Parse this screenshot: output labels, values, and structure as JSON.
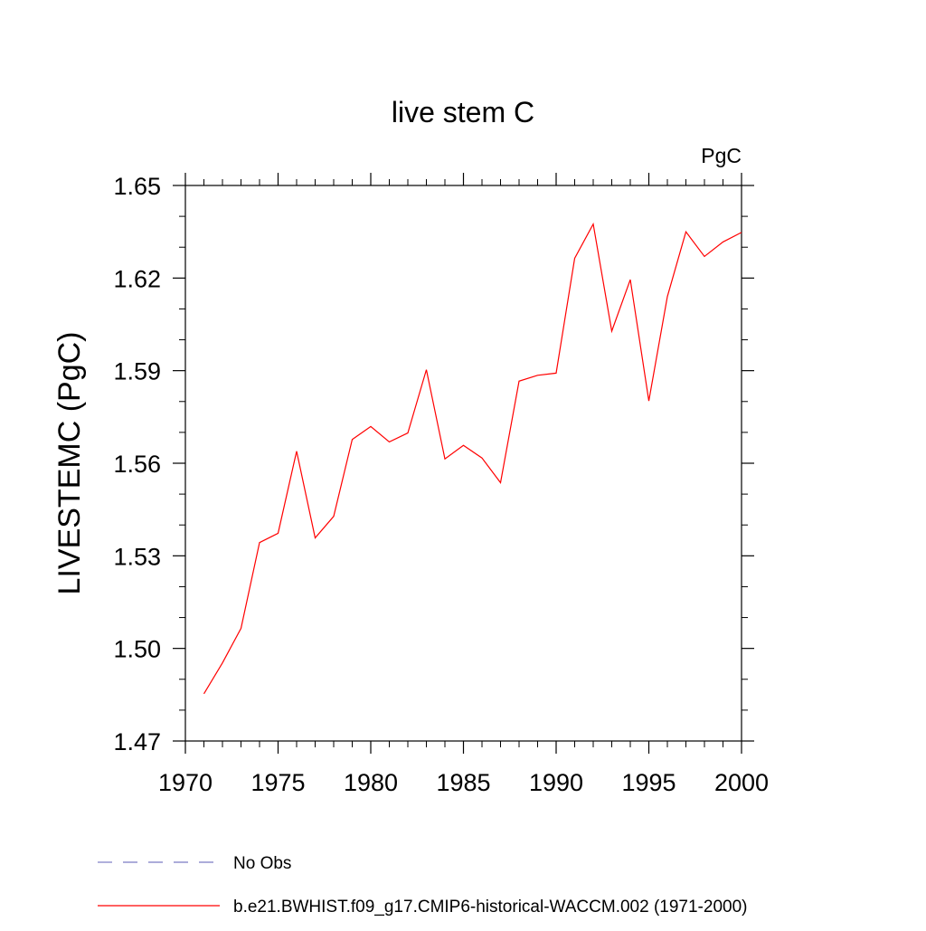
{
  "chart_data": {
    "type": "line",
    "title": "live stem C",
    "units": "PgC",
    "ylabel": "LIVESTEMC  (PgC)",
    "xlabel": "",
    "xlim": [
      1970,
      2000
    ],
    "ylim": [
      1.47,
      1.65
    ],
    "xticks": [
      1970,
      1975,
      1980,
      1985,
      1990,
      1995,
      2000
    ],
    "xtick_labels": [
      "1970",
      "1975",
      "1980",
      "1985",
      "1990",
      "1995",
      "2000"
    ],
    "yticks": [
      1.47,
      1.5,
      1.53,
      1.56,
      1.59,
      1.62,
      1.65
    ],
    "ytick_labels": [
      "1.47",
      "1.50",
      "1.53",
      "1.56",
      "1.59",
      "1.62",
      "1.65"
    ],
    "grid": false,
    "legend_position": "bottom",
    "series": [
      {
        "name": "No Obs",
        "color": "#7b7bc4",
        "style": "dashed",
        "x": [],
        "y": []
      },
      {
        "name": "b.e21.BWHIST.f09_g17.CMIP6-historical-WACCM.002 (1971-2000)",
        "color": "#ff0000",
        "style": "solid",
        "x": [
          1971,
          1972,
          1973,
          1974,
          1975,
          1976,
          1977,
          1978,
          1979,
          1980,
          1981,
          1982,
          1983,
          1984,
          1985,
          1986,
          1987,
          1988,
          1989,
          1990,
          1991,
          1992,
          1993,
          1994,
          1995,
          1996,
          1997,
          1998,
          1999,
          2000
        ],
        "y": [
          1.4853,
          1.4953,
          1.5065,
          1.5343,
          1.5373,
          1.5639,
          1.5358,
          1.5428,
          1.5677,
          1.5719,
          1.5669,
          1.5698,
          1.5903,
          1.5614,
          1.5658,
          1.5617,
          1.5537,
          1.5866,
          1.5885,
          1.5892,
          1.6264,
          1.6375,
          1.6028,
          1.6195,
          1.5802,
          1.614,
          1.635,
          1.627,
          1.6317,
          1.6348
        ]
      }
    ]
  }
}
